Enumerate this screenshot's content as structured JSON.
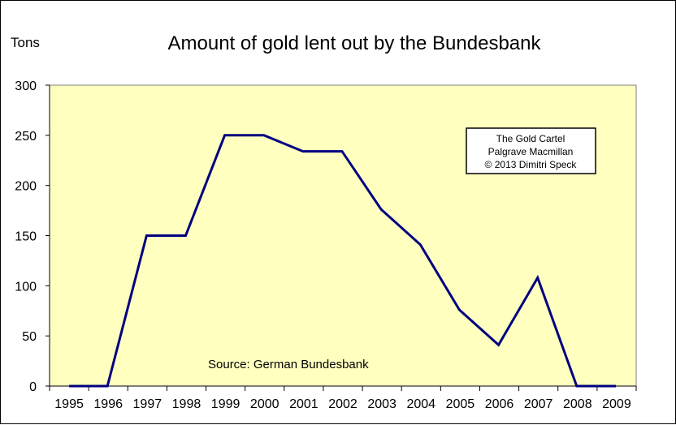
{
  "chart_data": {
    "type": "line",
    "title": "Amount of gold lent out by the Bundesbank",
    "ylabel": "Tons",
    "xlabel": "",
    "ylim": [
      0,
      300
    ],
    "yticks": [
      0,
      50,
      100,
      150,
      200,
      250,
      300
    ],
    "categories": [
      "1995",
      "1996",
      "1997",
      "1998",
      "1999",
      "2000",
      "2001",
      "2002",
      "2003",
      "2004",
      "2005",
      "2006",
      "2007",
      "2008",
      "2009"
    ],
    "x": [
      1995,
      1995.98,
      1996.98,
      1997.98,
      1998.98,
      1999.98,
      2000.98,
      2001.98,
      2002.98,
      2003.98,
      2004.98,
      2005.98,
      2006.98,
      2007.98,
      2008.98
    ],
    "series": [
      {
        "values": [
          0,
          0,
          150,
          150,
          250,
          250,
          234,
          234,
          176,
          141,
          76,
          41,
          108,
          0,
          0
        ]
      }
    ],
    "grid": false,
    "annotations": {
      "box_lines": [
        "The Gold Cartel",
        "Palgrave Macmillan",
        "© 2013 Dimitri Speck"
      ],
      "source": "Source: German  Bundesbank"
    },
    "colors": {
      "plot_bg": "#ffffc0",
      "line": "#000080"
    }
  }
}
